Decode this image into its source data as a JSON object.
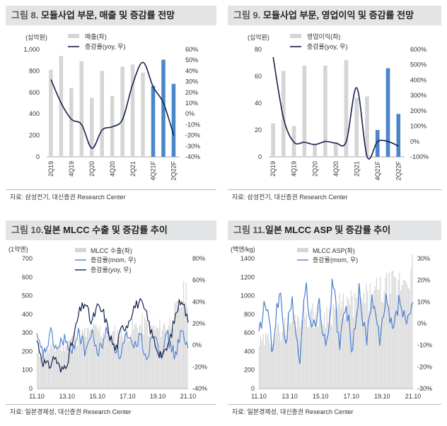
{
  "panels": [
    {
      "title_num": "그림 8.",
      "title_text": "모듈사업 부문, 매출 및 증감률 전망",
      "source": "자료: 삼성전기, 대신증권 Research Center"
    },
    {
      "title_num": "그림 9.",
      "title_text": "모듈사업 부문, 영업이익 및 증감률 전망",
      "source": "자료: 삼성전기, 대신증권 Research Center"
    },
    {
      "title_num": "그림 10.",
      "title_text": "일본 MLCC 수출 및 증감률 추이",
      "source": "자료: 일본경제성, 대신증권 Research Center"
    },
    {
      "title_num": "그림 11.",
      "title_text": "일본 MLCC ASP 및 증감률 추이",
      "source": "자료: 일본경제성, 대신증권 Research Center"
    }
  ],
  "colors": {
    "bar_gray": "#d5d5d5",
    "bar_blue": "#4a86c8",
    "line_navy": "#15204d",
    "line_blue": "#4a7fd0"
  },
  "chart_data": [
    {
      "type": "bar",
      "unit_label": "(십억원)",
      "categories": [
        "2Q19",
        "3Q19",
        "4Q19",
        "1Q20",
        "2Q20",
        "3Q20",
        "4Q20",
        "1Q21",
        "2Q21",
        "3Q21",
        "4Q21F",
        "1Q22F",
        "2Q22F"
      ],
      "x_tick_labels": [
        "2Q19",
        "4Q19",
        "2Q20",
        "4Q20",
        "2Q21",
        "4Q21F",
        "2Q22F"
      ],
      "series": [
        {
          "name": "매출(좌)",
          "axis": "left",
          "values": [
            810,
            940,
            640,
            890,
            550,
            800,
            565,
            840,
            860,
            785,
            660,
            905,
            680
          ],
          "forecast_from_index": 10
        },
        {
          "name": "증감률(yoy, 우)",
          "axis": "right",
          "type": "line",
          "values": [
            32,
            10,
            -5,
            -10,
            -32,
            -15,
            -12,
            -5,
            28,
            48,
            25,
            10,
            -20
          ]
        }
      ],
      "ylim_left": [
        0,
        1000
      ],
      "yticks_left": [
        "0",
        "200",
        "400",
        "600",
        "800",
        "1,000"
      ],
      "ylim_right": [
        -40,
        60
      ],
      "yticks_right": [
        "-40%",
        "-30%",
        "-20%",
        "-10%",
        "0%",
        "10%",
        "20%",
        "30%",
        "40%",
        "50%",
        "60%"
      ]
    },
    {
      "type": "bar",
      "unit_label": "(십억원)",
      "categories": [
        "2Q19",
        "3Q19",
        "4Q19",
        "1Q20",
        "2Q20",
        "3Q20",
        "4Q20",
        "1Q21",
        "2Q21",
        "3Q21",
        "4Q21F",
        "1Q22F",
        "2Q22F"
      ],
      "x_tick_labels": [
        "2Q19",
        "4Q19",
        "2Q20",
        "4Q20",
        "2Q21",
        "4Q21F",
        "2Q22F"
      ],
      "series": [
        {
          "name": "영업이익(좌)",
          "axis": "left",
          "values": [
            25,
            64,
            23,
            68,
            10,
            68,
            10,
            72,
            44,
            45,
            20,
            66,
            32
          ],
          "forecast_from_index": 10
        },
        {
          "name": "증감률(yoy, 우)",
          "axis": "right",
          "type": "line",
          "values": [
            550,
            150,
            -5,
            -5,
            -20,
            0,
            -10,
            0,
            350,
            -100,
            0,
            0,
            -30
          ]
        }
      ],
      "ylim_left": [
        0,
        80
      ],
      "yticks_left": [
        "0",
        "20",
        "40",
        "60",
        "80"
      ],
      "ylim_right": [
        -100,
        600
      ],
      "yticks_right": [
        "-100%",
        "0%",
        "100%",
        "200%",
        "300%",
        "400%",
        "500%",
        "600%"
      ]
    },
    {
      "type": "bar",
      "unit_label": "(1억엔)",
      "x_tick_labels": [
        "11.10",
        "13.10",
        "15.10",
        "17.10",
        "19.10",
        "21.10"
      ],
      "x_range": [
        "2011-10",
        "2021-10"
      ],
      "series": [
        {
          "name": "MLCC 수출(좌)",
          "axis": "left",
          "description_values": [
            190,
            220,
            260,
            300,
            330,
            300,
            320,
            360,
            330,
            380,
            560
          ]
        },
        {
          "name": "증감률(mom, 우)",
          "axis": "right",
          "type": "line",
          "values": [
            5,
            -10,
            10,
            -5,
            8,
            -12,
            15,
            -5,
            10,
            -8,
            12,
            5,
            -10,
            8,
            -5,
            10,
            -12,
            15,
            -5,
            8,
            -10,
            12,
            -5
          ]
        },
        {
          "name": "증감률(yoy, 우)",
          "axis": "right",
          "type": "line",
          "values": [
            5,
            -15,
            -20,
            -10,
            -25,
            -15,
            5,
            30,
            40,
            20,
            35,
            30,
            10,
            -5,
            15,
            20,
            35,
            40,
            30,
            10,
            -5,
            -10,
            5,
            30,
            45,
            20
          ]
        }
      ],
      "ylim_left": [
        0,
        700
      ],
      "yticks_left": [
        "0",
        "100",
        "200",
        "300",
        "400",
        "500",
        "600",
        "700"
      ],
      "ylim_right": [
        -40,
        80
      ],
      "yticks_right": [
        "-40%",
        "-20%",
        "0%",
        "20%",
        "40%",
        "60%",
        "80%"
      ]
    },
    {
      "type": "bar",
      "unit_label": "(백엔/kg)",
      "x_tick_labels": [
        "11.10",
        "13.10",
        "15.10",
        "17.10",
        "19.10",
        "21.10"
      ],
      "x_range": [
        "2011-10",
        "2021-10"
      ],
      "series": [
        {
          "name": "MLCC ASP(좌)",
          "axis": "left",
          "description_values": [
            500,
            600,
            750,
            850,
            800,
            900,
            950,
            1000,
            1100,
            1150,
            1350
          ]
        },
        {
          "name": "증감률(mom, 우)",
          "axis": "right",
          "type": "line",
          "values": [
            -5,
            10,
            -12,
            15,
            -8,
            12,
            -20,
            18,
            -5,
            10,
            -15,
            20,
            -10,
            8,
            -12,
            15,
            -8,
            12,
            -10,
            10,
            -5,
            12,
            -3,
            10
          ]
        }
      ],
      "ylim_left": [
        0,
        1400
      ],
      "yticks_left": [
        "0",
        "200",
        "400",
        "600",
        "800",
        "1000",
        "1200",
        "1400"
      ],
      "ylim_right": [
        -30,
        30
      ],
      "yticks_right": [
        "-30%",
        "-20%",
        "-10%",
        "0%",
        "10%",
        "20%",
        "30%"
      ]
    }
  ]
}
